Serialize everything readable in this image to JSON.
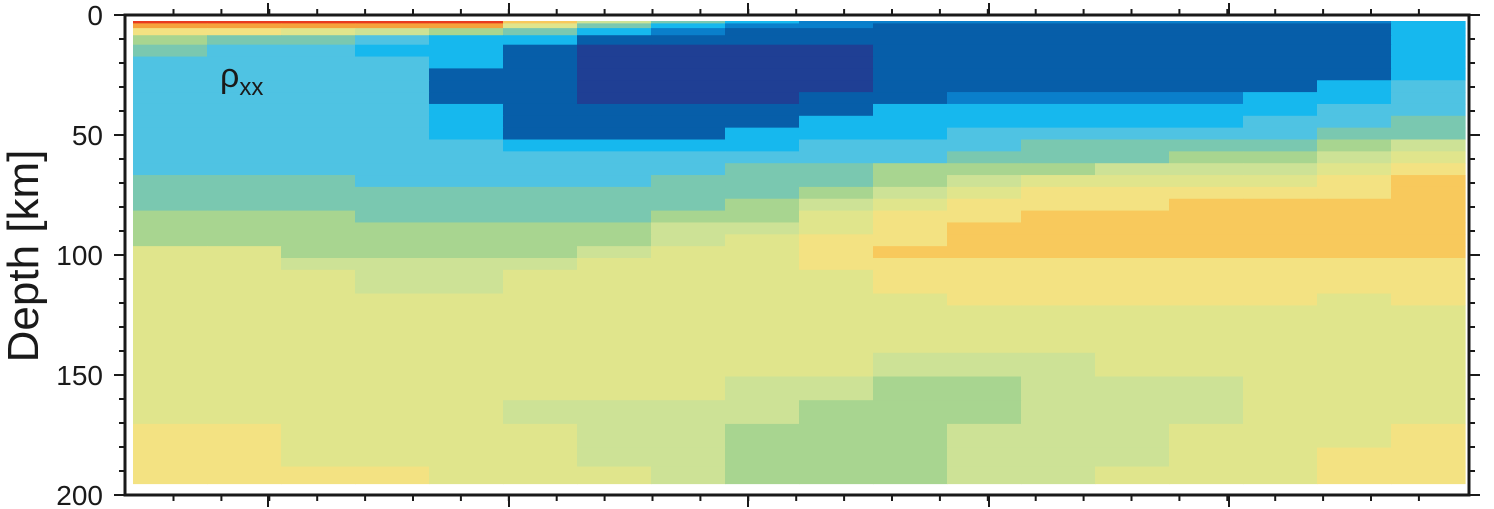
{
  "chart_data": {
    "type": "heatmap",
    "title": "",
    "panel_label": {
      "base": "ρ",
      "subscript": "xx"
    },
    "xlabel": "",
    "ylabel": "Depth [km]",
    "y_axis": {
      "range": [
        0,
        200
      ],
      "inverted": true,
      "ticks": [
        0,
        50,
        100,
        150,
        200
      ],
      "tick_labels": [
        "0",
        "50",
        "100",
        "150",
        "200"
      ]
    },
    "x_axis": {
      "tick_labels_shown": false
    },
    "grid": false,
    "legend": "none",
    "palette": {
      "0": "#e83a1f",
      "1": "#f6a23c",
      "2": "#f8c95c",
      "3": "#f3e282",
      "4": "#e0e58c",
      "5": "#cde296",
      "6": "#a8d590",
      "7": "#7ac8b0",
      "8": "#4fc3e3",
      "9": "#16b8ee",
      "10": "#0a7fcb",
      "11": "#075ea9",
      "12": "#1f3f94"
    },
    "columns": 18,
    "depth_bands": [
      {
        "from": 0,
        "to": 1,
        "levels": [
          0,
          0,
          0,
          0,
          0,
          2,
          5,
          7,
          9,
          10,
          10,
          10,
          10,
          10,
          10,
          10,
          10,
          9
        ]
      },
      {
        "from": 1,
        "to": 3,
        "levels": [
          1,
          1,
          1,
          1,
          1,
          4,
          7,
          9,
          10,
          10,
          11,
          11,
          11,
          11,
          11,
          11,
          11,
          9
        ]
      },
      {
        "from": 3,
        "to": 6,
        "levels": [
          3,
          3,
          4,
          5,
          6,
          7,
          9,
          10,
          11,
          11,
          11,
          11,
          11,
          11,
          11,
          11,
          11,
          9
        ]
      },
      {
        "from": 6,
        "to": 10,
        "levels": [
          6,
          7,
          7,
          8,
          9,
          9,
          11,
          11,
          11,
          11,
          11,
          11,
          11,
          11,
          11,
          11,
          11,
          9
        ]
      },
      {
        "from": 10,
        "to": 15,
        "levels": [
          7,
          8,
          8,
          9,
          9,
          11,
          12,
          12,
          12,
          12,
          11,
          11,
          11,
          11,
          11,
          11,
          11,
          9
        ]
      },
      {
        "from": 15,
        "to": 20,
        "levels": [
          8,
          8,
          8,
          8,
          9,
          11,
          12,
          12,
          12,
          12,
          11,
          11,
          11,
          11,
          11,
          11,
          11,
          9
        ]
      },
      {
        "from": 20,
        "to": 25,
        "levels": [
          8,
          8,
          8,
          8,
          11,
          11,
          12,
          12,
          12,
          12,
          11,
          11,
          11,
          11,
          11,
          11,
          11,
          9
        ]
      },
      {
        "from": 25,
        "to": 30,
        "levels": [
          8,
          8,
          8,
          8,
          11,
          11,
          12,
          12,
          12,
          12,
          11,
          11,
          11,
          11,
          11,
          11,
          9,
          8
        ]
      },
      {
        "from": 30,
        "to": 35,
        "levels": [
          8,
          8,
          8,
          8,
          11,
          11,
          12,
          12,
          12,
          11,
          11,
          10,
          10,
          10,
          10,
          9,
          9,
          8
        ]
      },
      {
        "from": 35,
        "to": 40,
        "levels": [
          8,
          8,
          8,
          8,
          9,
          11,
          11,
          11,
          11,
          11,
          9,
          9,
          9,
          9,
          9,
          9,
          8,
          8
        ]
      },
      {
        "from": 40,
        "to": 45,
        "levels": [
          8,
          8,
          8,
          8,
          9,
          11,
          11,
          11,
          11,
          9,
          9,
          9,
          9,
          9,
          9,
          8,
          8,
          7
        ]
      },
      {
        "from": 45,
        "to": 50,
        "levels": [
          8,
          8,
          8,
          8,
          9,
          11,
          11,
          11,
          9,
          9,
          9,
          8,
          8,
          8,
          8,
          8,
          7,
          7
        ]
      },
      {
        "from": 50,
        "to": 55,
        "levels": [
          8,
          8,
          8,
          8,
          8,
          9,
          9,
          9,
          9,
          8,
          8,
          8,
          7,
          7,
          7,
          7,
          6,
          5
        ]
      },
      {
        "from": 55,
        "to": 60,
        "levels": [
          8,
          8,
          8,
          8,
          8,
          8,
          8,
          8,
          8,
          8,
          8,
          7,
          7,
          7,
          6,
          6,
          5,
          4
        ]
      },
      {
        "from": 60,
        "to": 65,
        "levels": [
          8,
          8,
          8,
          8,
          8,
          8,
          8,
          8,
          7,
          7,
          6,
          6,
          6,
          5,
          5,
          5,
          4,
          3
        ]
      },
      {
        "from": 65,
        "to": 70,
        "levels": [
          7,
          7,
          7,
          8,
          8,
          8,
          8,
          7,
          7,
          7,
          6,
          5,
          4,
          4,
          4,
          4,
          3,
          2
        ]
      },
      {
        "from": 70,
        "to": 75,
        "levels": [
          7,
          7,
          7,
          7,
          7,
          7,
          7,
          7,
          7,
          6,
          5,
          4,
          3,
          3,
          3,
          3,
          3,
          2
        ]
      },
      {
        "from": 75,
        "to": 80,
        "levels": [
          7,
          7,
          7,
          7,
          7,
          7,
          7,
          7,
          6,
          5,
          4,
          3,
          3,
          3,
          2,
          2,
          2,
          2
        ]
      },
      {
        "from": 80,
        "to": 85,
        "levels": [
          6,
          6,
          6,
          7,
          7,
          7,
          7,
          6,
          6,
          4,
          3,
          3,
          2,
          2,
          2,
          2,
          2,
          2
        ]
      },
      {
        "from": 85,
        "to": 90,
        "levels": [
          6,
          6,
          6,
          6,
          6,
          6,
          6,
          5,
          5,
          4,
          3,
          2,
          2,
          2,
          2,
          2,
          2,
          2
        ]
      },
      {
        "from": 90,
        "to": 95,
        "levels": [
          6,
          6,
          6,
          6,
          6,
          6,
          6,
          5,
          4,
          3,
          3,
          2,
          2,
          2,
          2,
          2,
          2,
          2
        ]
      },
      {
        "from": 95,
        "to": 100,
        "levels": [
          4,
          4,
          6,
          6,
          6,
          6,
          5,
          4,
          4,
          3,
          2,
          2,
          2,
          2,
          2,
          2,
          2,
          2
        ]
      },
      {
        "from": 100,
        "to": 105,
        "levels": [
          4,
          4,
          5,
          5,
          5,
          5,
          4,
          4,
          4,
          3,
          3,
          3,
          3,
          3,
          3,
          3,
          3,
          3
        ]
      },
      {
        "from": 105,
        "to": 110,
        "levels": [
          4,
          4,
          4,
          5,
          5,
          4,
          4,
          4,
          4,
          4,
          3,
          3,
          3,
          3,
          3,
          3,
          3,
          3
        ]
      },
      {
        "from": 110,
        "to": 115,
        "levels": [
          4,
          4,
          4,
          5,
          5,
          4,
          4,
          4,
          4,
          4,
          3,
          3,
          3,
          3,
          3,
          3,
          3,
          3
        ]
      },
      {
        "from": 115,
        "to": 120,
        "levels": [
          4,
          4,
          4,
          4,
          4,
          4,
          4,
          4,
          4,
          4,
          4,
          3,
          3,
          3,
          3,
          3,
          4,
          3
        ]
      },
      {
        "from": 120,
        "to": 130,
        "levels": [
          4,
          4,
          4,
          4,
          4,
          4,
          4,
          4,
          4,
          4,
          4,
          4,
          4,
          4,
          4,
          4,
          4,
          4
        ]
      },
      {
        "from": 130,
        "to": 140,
        "levels": [
          4,
          4,
          4,
          4,
          4,
          4,
          4,
          4,
          4,
          4,
          4,
          4,
          4,
          4,
          4,
          4,
          4,
          4
        ]
      },
      {
        "from": 140,
        "to": 150,
        "levels": [
          4,
          4,
          4,
          4,
          4,
          4,
          4,
          4,
          4,
          4,
          5,
          5,
          5,
          4,
          4,
          4,
          4,
          4
        ]
      },
      {
        "from": 150,
        "to": 160,
        "levels": [
          4,
          4,
          4,
          4,
          4,
          4,
          4,
          4,
          5,
          5,
          6,
          6,
          5,
          5,
          5,
          4,
          4,
          4
        ]
      },
      {
        "from": 160,
        "to": 170,
        "levels": [
          4,
          4,
          4,
          4,
          4,
          5,
          5,
          5,
          5,
          6,
          6,
          6,
          5,
          5,
          5,
          4,
          4,
          4
        ]
      },
      {
        "from": 170,
        "to": 180,
        "levels": [
          3,
          3,
          4,
          4,
          4,
          4,
          5,
          5,
          6,
          6,
          6,
          5,
          5,
          5,
          4,
          4,
          4,
          3
        ]
      },
      {
        "from": 180,
        "to": 188,
        "levels": [
          3,
          3,
          4,
          4,
          4,
          4,
          5,
          5,
          6,
          6,
          6,
          5,
          5,
          5,
          4,
          4,
          3,
          3
        ]
      },
      {
        "from": 188,
        "to": 196,
        "levels": [
          3,
          3,
          3,
          3,
          4,
          4,
          4,
          5,
          6,
          6,
          6,
          5,
          5,
          4,
          4,
          4,
          3,
          3
        ]
      }
    ]
  }
}
